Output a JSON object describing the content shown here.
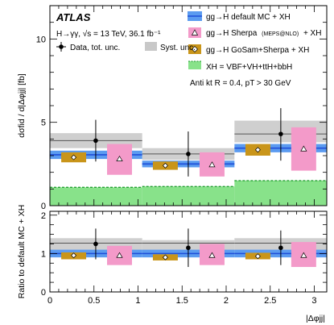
{
  "chart_data": [
    {
      "type": "bar",
      "panel": "main",
      "experiment": "ATLAS",
      "process_label": "H→γγ, √s = 13 TeV, 36.1 fb⁻¹",
      "selection_label": "Anti kt R = 0.4, pT > 30 GeV",
      "ylabel": "dσfid / d|Δφjj| [fb]",
      "ylim": [
        0,
        12
      ],
      "yticks": [
        0,
        5,
        10
      ],
      "xlim": [
        0,
        3.1416
      ],
      "xticks": [
        0,
        0.5,
        1,
        1.5,
        2,
        2.5,
        3
      ],
      "bin_edges": [
        0,
        1.0472,
        2.0944,
        3.1416
      ],
      "legend_position": "top-right",
      "legend": {
        "data": "Data, tot. unc.",
        "syst": "Syst. unc.",
        "default_mc": "gg→H default MC + XH",
        "sherpa": "gg→H Sherpa",
        "sherpa_tag": "(MEPS@NLO)",
        "sherpa_suffix": "+ XH",
        "gosam": "gg→H GoSam+Sherpa + XH",
        "xh": "XH = VBF+VH+ttH+bbH"
      },
      "series": [
        {
          "name": "Data, tot. unc.",
          "x": [
            0.52,
            1.57,
            2.62
          ],
          "values": [
            3.9,
            3.1,
            4.3
          ],
          "err_low": [
            1.25,
            1.35,
            1.6
          ],
          "err_high": [
            1.25,
            1.35,
            1.55
          ]
        },
        {
          "name": "Syst. unc.",
          "values": [
            3.9,
            3.1,
            4.3
          ],
          "low": [
            3.45,
            2.75,
            3.8
          ],
          "high": [
            4.35,
            3.45,
            5.1
          ]
        },
        {
          "name": "gg→H default MC + XH",
          "values": [
            3.05,
            2.5,
            3.45
          ],
          "low": [
            2.8,
            2.3,
            3.2
          ],
          "high": [
            3.3,
            2.7,
            3.7
          ]
        },
        {
          "name": "gg→H Sherpa (MEPS@NLO) + XH",
          "x": [
            0.79,
            1.84,
            2.88
          ],
          "values": [
            2.8,
            2.45,
            3.4
          ],
          "low": [
            1.85,
            1.75,
            2.1
          ],
          "high": [
            3.7,
            3.2,
            4.7
          ]
        },
        {
          "name": "gg→H GoSam+Sherpa + XH",
          "x": [
            0.27,
            1.31,
            2.36
          ],
          "values": [
            2.9,
            2.4,
            3.35
          ],
          "low": [
            2.6,
            2.15,
            3.0
          ],
          "high": [
            3.2,
            2.65,
            3.7
          ]
        },
        {
          "name": "XH = VBF+VH+ttH+bbH",
          "values": [
            1.1,
            1.15,
            1.5
          ]
        }
      ]
    },
    {
      "type": "bar",
      "panel": "ratio",
      "ylabel": "Ratio to default MC + XH",
      "xlabel": "|Δφjj|",
      "ylim": [
        0,
        2.1
      ],
      "yticks": [
        0,
        1,
        2
      ],
      "xlim": [
        0,
        3.1416
      ],
      "xticks": [
        0,
        0.5,
        1,
        1.5,
        2,
        2.5,
        3
      ],
      "series": [
        {
          "name": "Data",
          "x": [
            0.52,
            1.57,
            2.62
          ],
          "values": [
            1.25,
            1.15,
            1.15
          ],
          "err_low": [
            0.4,
            0.5,
            0.45
          ],
          "err_high": [
            0.4,
            0.5,
            0.45
          ]
        },
        {
          "name": "Syst. unc.",
          "low": [
            1.05,
            1.05,
            1.0
          ],
          "high": [
            1.4,
            1.35,
            1.4
          ]
        },
        {
          "name": "Default MC band",
          "low": [
            0.9,
            0.9,
            0.9
          ],
          "high": [
            1.1,
            1.1,
            1.1
          ]
        },
        {
          "name": "Sherpa",
          "x": [
            0.79,
            1.84,
            2.88
          ],
          "values": [
            0.95,
            0.95,
            0.95
          ],
          "low": [
            0.7,
            0.7,
            0.65
          ],
          "high": [
            1.2,
            1.25,
            1.3
          ]
        },
        {
          "name": "GoSam",
          "x": [
            0.27,
            1.31,
            2.36
          ],
          "values": [
            0.95,
            0.9,
            0.93
          ],
          "low": [
            0.85,
            0.82,
            0.85
          ],
          "high": [
            1.03,
            0.98,
            1.02
          ]
        }
      ]
    }
  ]
}
